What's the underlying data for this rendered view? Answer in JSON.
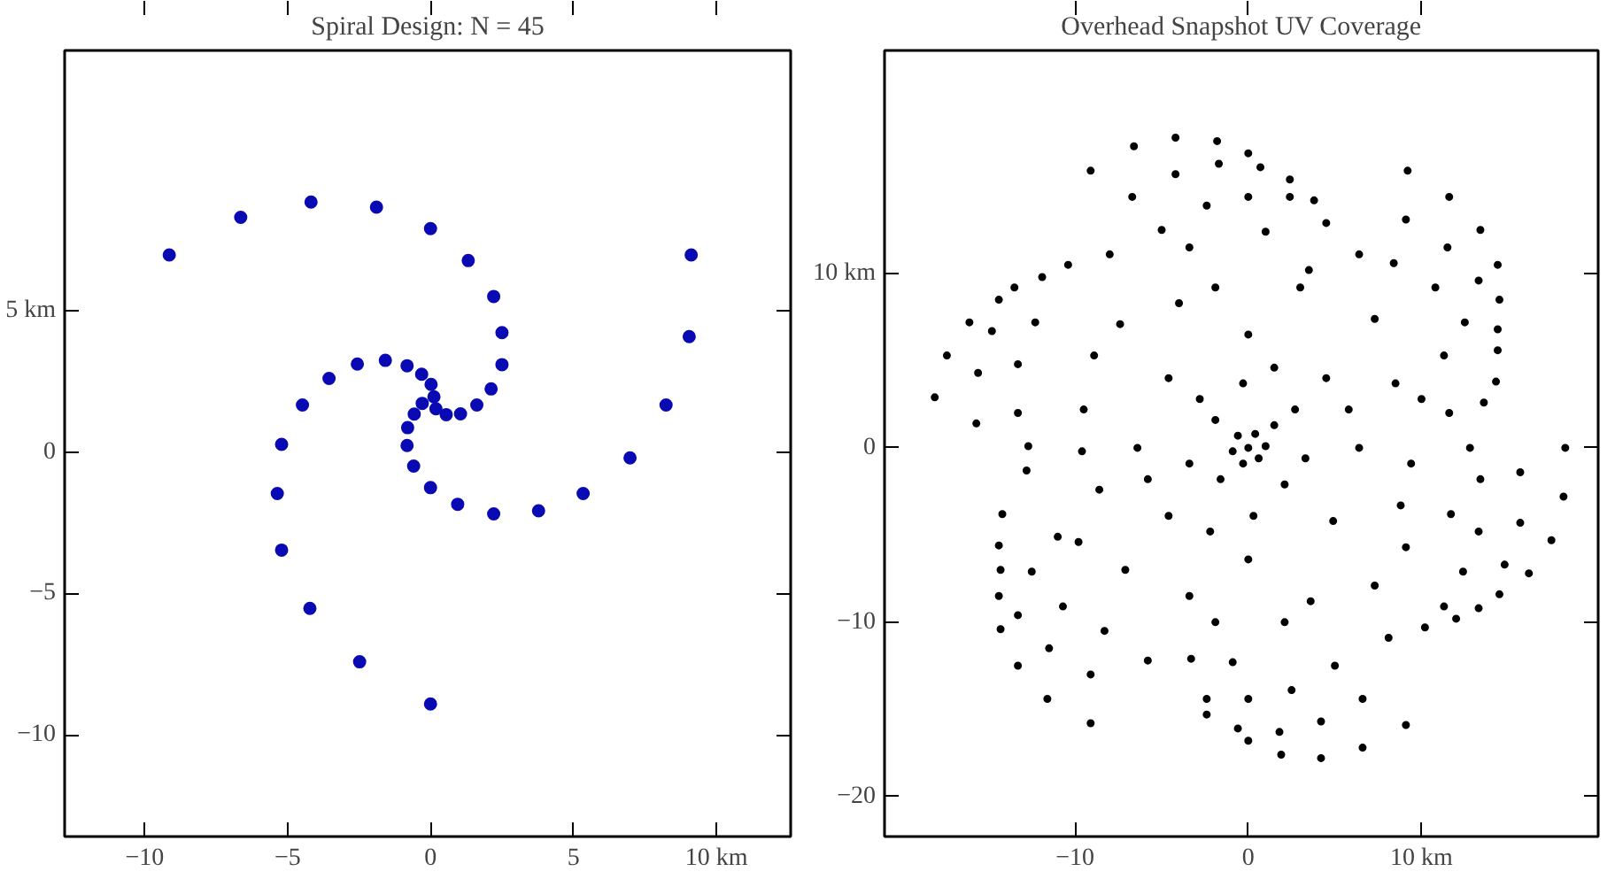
{
  "chart_data": [
    {
      "type": "scatter",
      "title": "Spiral Design: N = 45",
      "marker": "circle",
      "grid": false,
      "color": "#0a0ab4",
      "xlim": [
        -12.8,
        12.6
      ],
      "ylim": [
        -13.6,
        14.2
      ],
      "xticks": [
        -10,
        -5,
        0,
        5,
        {
          "value": 10,
          "label": "10 km"
        }
      ],
      "yticks": [
        -10,
        -5,
        0,
        {
          "value": 5,
          "label": "5 km"
        }
      ],
      "x": [
        -9.14,
        -6.64,
        -4.18,
        -1.89,
        0,
        1.32,
        2.21,
        2.5,
        2.5,
        2.12,
        1.62,
        1.05,
        0.55,
        9.12,
        9.05,
        8.24,
        6.98,
        5.34,
        3.78,
        2.21,
        0.95,
        0,
        -0.59,
        -0.82,
        -0.8,
        -0.57,
        -5.21,
        -5.36,
        -5.21,
        -4.22,
        -2.48,
        0,
        -4.48,
        -3.55,
        -2.56,
        -1.58,
        -0.82,
        -0.31,
        0.02,
        0.12,
        -0.29,
        0.19
      ],
      "values": [
        6.97,
        8.3,
        8.84,
        8.66,
        7.9,
        6.77,
        5.5,
        4.22,
        3.09,
        2.23,
        1.66,
        1.35,
        1.32,
        6.97,
        4.08,
        1.66,
        -0.21,
        -1.47,
        -2.08,
        -2.19,
        -1.85,
        -1.26,
        -0.5,
        0.23,
        0.86,
        1.34,
        0.27,
        -1.47,
        -3.47,
        -5.53,
        -7.42,
        -8.91,
        1.66,
        2.6,
        3.11,
        3.24,
        3.05,
        2.75,
        2.39,
        1.95,
        1.72,
        1.53
      ]
    },
    {
      "type": "scatter",
      "title": "Overhead Snapshot UV Coverage",
      "marker": "circle",
      "grid": false,
      "color": "#000000",
      "xlim": [
        -21.0,
        20.2
      ],
      "ylim": [
        -22.3,
        22.8
      ],
      "xticks": [
        -10,
        0,
        {
          "value": 10,
          "label": "10 km"
        }
      ],
      "yticks": [
        -20,
        -10,
        0,
        {
          "value": 10,
          "label": "10 km"
        }
      ],
      "x": [
        -6.6,
        -4.2,
        -1.8,
        -9.1,
        -4.2,
        -1.7,
        0,
        0.7,
        2.4,
        9.2,
        -6.7,
        -2.4,
        0,
        2.4,
        3.8,
        11.6,
        9.1,
        -5.0,
        1.0,
        4.5,
        13.4,
        11.5,
        14.4,
        13.3,
        14.5,
        14.4,
        14.4,
        14.3,
        13.6,
        18.3,
        18.2,
        15.7,
        15.7,
        17.5,
        16.2,
        14.8,
        14.5,
        13.3,
        12.0,
        13.4,
        13.3,
        9.1,
        6.6,
        6.6,
        4.2,
        4.2,
        1.9,
        1.8,
        0,
        0,
        -0.6,
        -2.4,
        -2.4,
        2.5,
        -9.1,
        -11.6,
        -9.1,
        -13.3,
        -14.3,
        -13.3,
        -14.4,
        -14.3,
        -14.4,
        -14.2,
        -17.4,
        -18.1,
        -15.7,
        -15.6,
        -16.1,
        -14.8,
        -14.4,
        -13.5,
        -12.3,
        -13.3,
        -13.3,
        -11.5,
        -10.7,
        -8.3,
        -5.8,
        -3.3,
        -0.9,
        5.0,
        8.1,
        10.2,
        11.3,
        12.4,
        11.7,
        12.8,
        11.6,
        11.3,
        12.5,
        10.8,
        8.4,
        6.4,
        3.5,
        -3.4,
        -8.0,
        -10.4,
        -11.9,
        -12.8,
        -12.7,
        -11.0,
        -12.5,
        0,
        -0.6,
        0.6,
        -0.3,
        0.4,
        -0.9,
        1.0,
        1.5,
        -1.9,
        -1.6,
        2.1,
        2.7,
        -2.8,
        -3.4,
        3.3,
        -0.3,
        0.3,
        -4.6,
        4.5,
        -4.6,
        4.9,
        0,
        0,
        -6.4,
        6.4,
        -8.9,
        -8.6,
        8.5,
        8.8,
        -3.4,
        3.6,
        -4.0,
        3.0,
        -9.5,
        -9.8,
        9.1,
        10.0,
        1.5,
        -2.2,
        -5.8,
        5.8,
        -7.1,
        7.3,
        -7.4,
        7.3,
        -1.9,
        -1.9,
        2.1,
        9.4,
        -9.6
      ],
      "values": [
        17.3,
        17.8,
        17.6,
        15.9,
        15.7,
        16.3,
        16.9,
        16.1,
        15.4,
        15.9,
        14.4,
        13.9,
        14.4,
        14.4,
        14.2,
        14.4,
        13.1,
        12.5,
        12.4,
        12.9,
        12.5,
        11.5,
        10.5,
        9.6,
        8.5,
        6.8,
        5.6,
        3.8,
        2.6,
        0,
        -2.8,
        -1.4,
        -4.3,
        -5.3,
        -7.2,
        -6.7,
        -8.4,
        -9.2,
        -9.8,
        -1.8,
        -4.8,
        -15.9,
        -17.2,
        -14.4,
        -17.8,
        -15.7,
        -17.6,
        -16.3,
        -16.8,
        -14.4,
        -16.1,
        -15.3,
        -14.4,
        -13.9,
        -15.8,
        -14.4,
        -13.0,
        -12.5,
        -10.4,
        -9.6,
        -8.5,
        -7.0,
        -5.6,
        -3.8,
        5.3,
        2.9,
        1.4,
        4.3,
        7.2,
        6.7,
        8.5,
        9.2,
        7.2,
        4.8,
        2.0,
        -11.5,
        -9.1,
        -10.5,
        -12.2,
        -12.1,
        -12.3,
        -12.5,
        -10.9,
        -10.3,
        -9.1,
        -7.1,
        -3.8,
        0,
        2.0,
        5.3,
        7.2,
        9.2,
        10.6,
        11.1,
        10.2,
        11.5,
        11.1,
        10.5,
        9.8,
        -1.3,
        0.1,
        -5.1,
        -7.1,
        0,
        0.7,
        -0.6,
        -0.9,
        0.8,
        -0.2,
        0.1,
        1.3,
        1.6,
        -1.8,
        -2.1,
        2.2,
        2.8,
        -0.9,
        -0.6,
        3.7,
        -3.9,
        4.0,
        4.0,
        -3.9,
        -4.2,
        6.5,
        -6.4,
        0,
        0,
        5.3,
        -2.4,
        3.7,
        -3.3,
        -8.5,
        -8.8,
        8.3,
        9.2,
        2.2,
        -5.4,
        -5.7,
        2.8,
        4.6,
        -4.8,
        -1.8,
        2.2,
        -7.0,
        -7.9,
        7.1,
        7.4,
        9.2,
        -10.0,
        -10.0,
        -0.9,
        -0.2
      ]
    }
  ]
}
